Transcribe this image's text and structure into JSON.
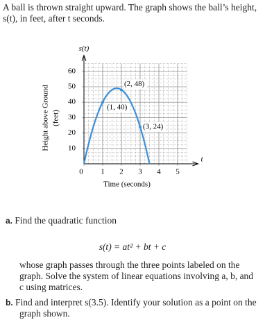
{
  "problem": {
    "intro": "A ball is thrown straight upward. The graph shows the ball’s height, s(t), in feet, after t seconds.",
    "part_a": {
      "label": "a.",
      "text": "Find the quadratic function",
      "formula": "s(t) = at² + bt + c",
      "text2": "whose graph passes through the three points labeled on the graph. Solve the system of linear equations involving a, b, and c using matrices."
    },
    "part_b": {
      "label": "b.",
      "text": "Find and interpret s(3.5). Identify your solution as a point on the graph shown."
    }
  },
  "chart_data": {
    "type": "line",
    "y_axis_name": "s(t)",
    "x_axis_name": "t",
    "ylabel": "Height above Ground",
    "ylabel2": "(feet)",
    "xlabel": "Time (seconds)",
    "x": [
      1,
      2,
      3
    ],
    "series": [
      {
        "name": "s(t)",
        "color": "#3b8fd8",
        "values": [
          40,
          48,
          24
        ],
        "value_labels": [
          "(1, 40)",
          "(2, 48)",
          "(3, 24)"
        ]
      }
    ],
    "xlim": [
      0,
      5.5
    ],
    "ylim": [
      0,
      65
    ],
    "xticks": [
      0,
      1,
      2,
      3,
      4,
      5
    ],
    "yticks": [
      10,
      20,
      30,
      40,
      50,
      60
    ],
    "grid": true
  }
}
